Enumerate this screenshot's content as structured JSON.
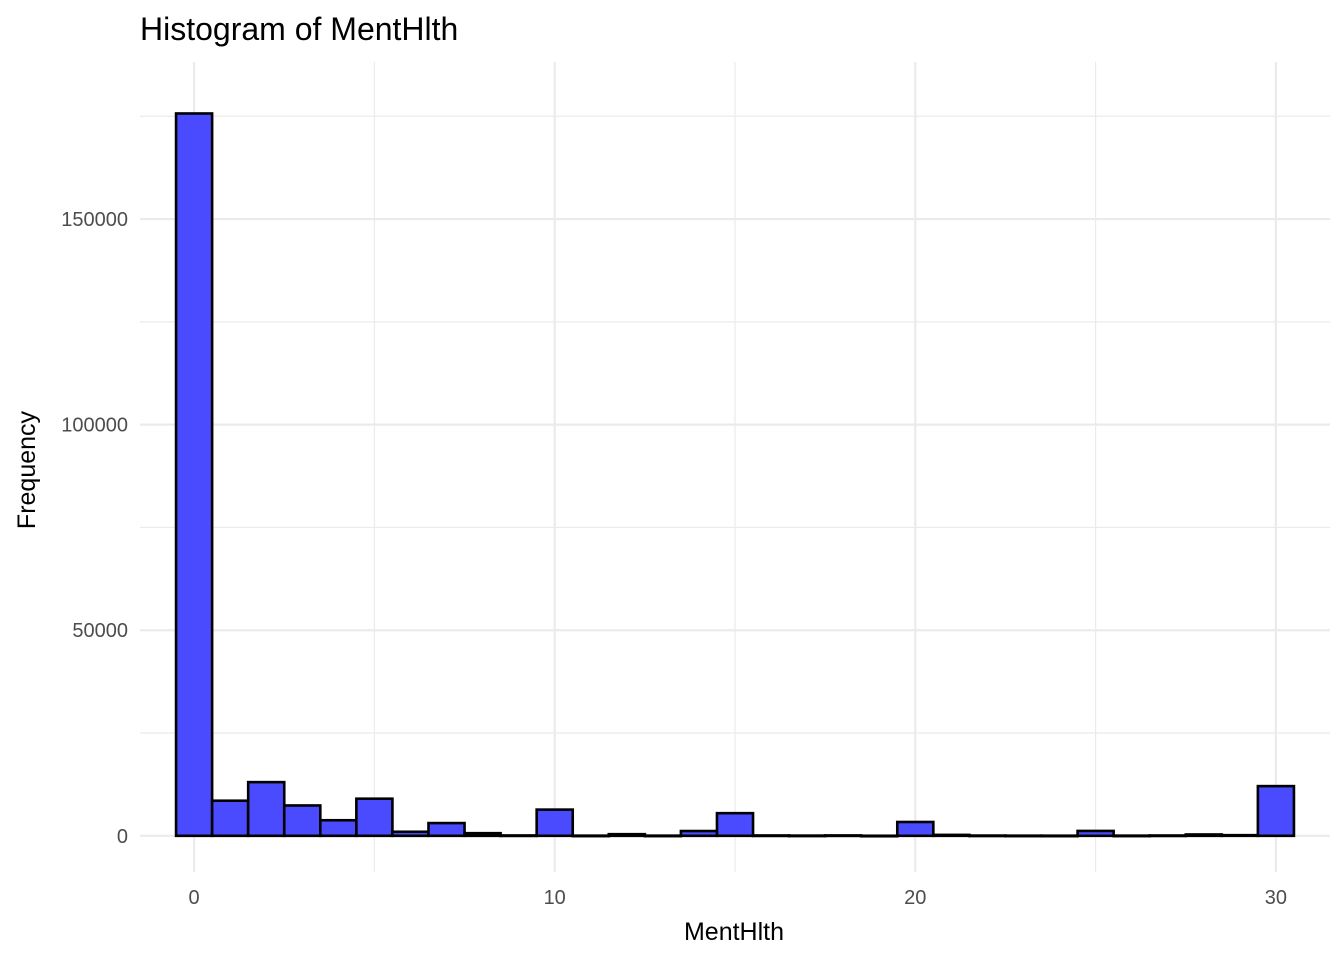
{
  "chart_data": {
    "type": "bar",
    "title": "Histogram of MentHlth",
    "xlabel": "MentHlth",
    "ylabel": "Frequency",
    "bin_width": 1,
    "bin_centers": [
      0,
      1,
      2,
      3,
      4,
      5,
      6,
      7,
      8,
      9,
      10,
      11,
      12,
      13,
      14,
      15,
      16,
      17,
      18,
      19,
      20,
      21,
      22,
      23,
      24,
      25,
      26,
      27,
      28,
      29,
      30
    ],
    "values": [
      175680,
      8538,
      13054,
      7381,
      3789,
      9030,
      988,
      3100,
      639,
      91,
      6373,
      41,
      398,
      41,
      1167,
      5505,
      88,
      54,
      97,
      16,
      3364,
      227,
      63,
      38,
      33,
      1188,
      45,
      79,
      327,
      158,
      12088
    ],
    "xlim": [
      -1.5,
      31.5
    ],
    "ylim": [
      -8800,
      188200
    ],
    "x_ticks": [
      0,
      10,
      20,
      30
    ],
    "x_minor_ticks": [
      5,
      15,
      25
    ],
    "y_ticks": [
      0,
      50000,
      100000,
      150000
    ],
    "y_minor_ticks": [
      25000,
      75000,
      125000,
      175000
    ],
    "fill_color": "#4a4aff",
    "edge_color": "#000000",
    "grid": true
  }
}
